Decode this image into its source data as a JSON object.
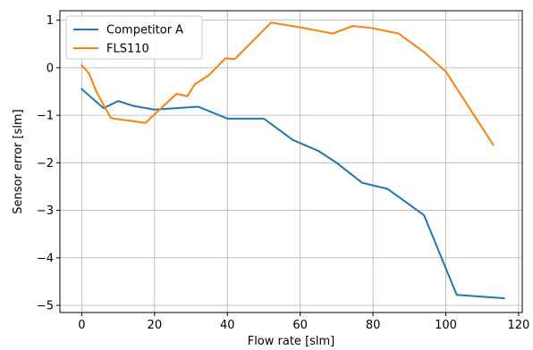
{
  "chart_data": {
    "type": "line",
    "xlabel": "Flow rate [slm]",
    "ylabel": "Sensor error [slm]",
    "xlim": [
      -6,
      121
    ],
    "ylim": [
      -5.15,
      1.2
    ],
    "x_ticks": [
      0,
      20,
      40,
      60,
      80,
      100,
      120
    ],
    "x_tick_labels": [
      "0",
      "20",
      "40",
      "60",
      "80",
      "100",
      "120"
    ],
    "y_ticks": [
      1,
      0,
      -1,
      -2,
      -3,
      -4,
      -5
    ],
    "y_tick_labels": [
      "1",
      "0",
      "−1",
      "−2",
      "−3",
      "−4",
      "−5"
    ],
    "grid": true,
    "legend_position": "top-left",
    "series": [
      {
        "name": "Competitor A",
        "color": "#1f77b4",
        "x": [
          0,
          6,
          10,
          14,
          20,
          32,
          40,
          50,
          58,
          65,
          70,
          77,
          84,
          94,
          103,
          116
        ],
        "y": [
          -0.45,
          -0.85,
          -0.7,
          -0.8,
          -0.88,
          -0.82,
          -1.07,
          -1.07,
          -1.52,
          -1.75,
          -2.0,
          -2.42,
          -2.55,
          -3.1,
          -4.78,
          -4.85
        ]
      },
      {
        "name": "FLS110",
        "color": "#ff7f0e",
        "x": [
          0,
          2,
          4,
          8,
          17.5,
          26,
          28,
          29,
          31,
          35,
          39.5,
          42,
          52,
          60,
          69,
          74.5,
          80,
          87,
          94,
          100,
          113
        ],
        "y": [
          0.05,
          -0.12,
          -0.5,
          -1.06,
          -1.16,
          -0.55,
          -0.58,
          -0.6,
          -0.35,
          -0.15,
          0.2,
          0.18,
          0.95,
          0.85,
          0.72,
          0.88,
          0.83,
          0.72,
          0.33,
          -0.08,
          -1.62
        ]
      }
    ]
  }
}
